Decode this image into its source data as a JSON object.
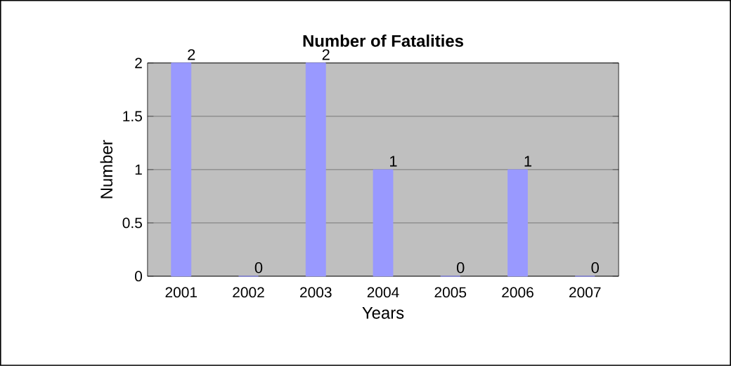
{
  "chart_data": {
    "type": "bar",
    "title": "Number of Fatalities",
    "xlabel": "Years",
    "ylabel": "Number",
    "categories": [
      "2001",
      "2002",
      "2003",
      "2004",
      "2005",
      "2006",
      "2007"
    ],
    "values": [
      2,
      0,
      2,
      1,
      0,
      1,
      0
    ],
    "color": "#9999ff",
    "ylim": [
      0,
      2
    ],
    "yticks": [
      0,
      0.5,
      1,
      1.5,
      2
    ],
    "grid": "y",
    "data_labels": true
  }
}
